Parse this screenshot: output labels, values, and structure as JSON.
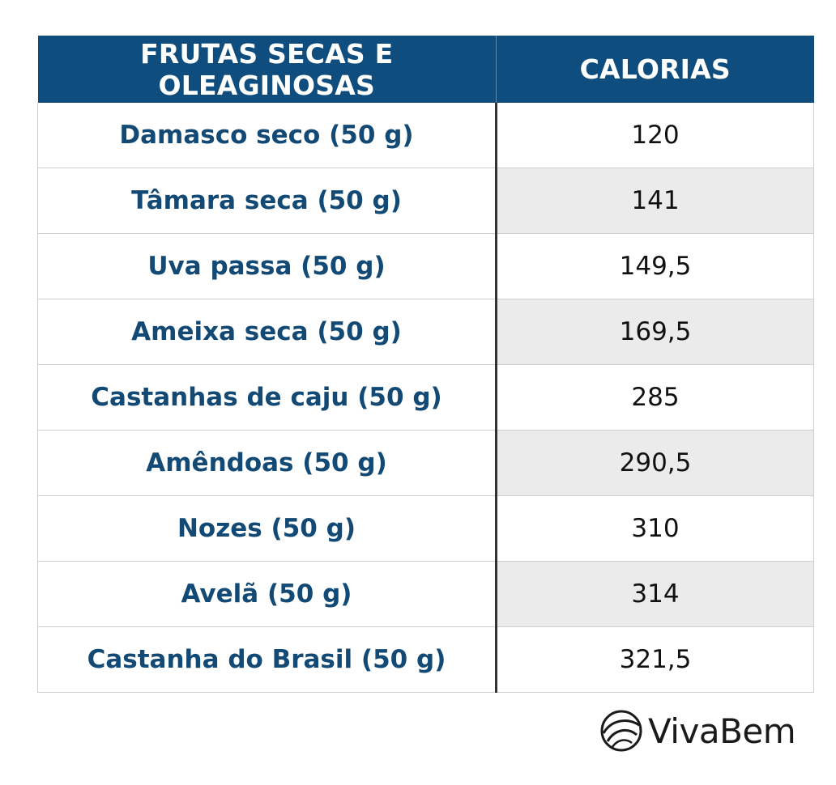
{
  "table": {
    "headers": [
      "FRUTAS SECAS E OLEAGINOSAS",
      "CALORIAS"
    ],
    "rows": [
      {
        "item": "Damasco seco (50 g)",
        "calories": "120"
      },
      {
        "item": "Tâmara seca (50 g)",
        "calories": "141"
      },
      {
        "item": "Uva passa (50 g)",
        "calories": "149,5"
      },
      {
        "item": "Ameixa seca (50 g)",
        "calories": "169,5"
      },
      {
        "item": "Castanhas de caju (50 g)",
        "calories": "285"
      },
      {
        "item": "Amêndoas (50 g)",
        "calories": "290,5"
      },
      {
        "item": "Nozes (50 g)",
        "calories": "310"
      },
      {
        "item": "Avelã (50 g)",
        "calories": "314"
      },
      {
        "item": "Castanha do Brasil (50 g)",
        "calories": "321,5"
      }
    ]
  },
  "logo": {
    "text": "VivaBem",
    "icon": "vivabem-logo-icon"
  },
  "colors": {
    "header_bg": "#0e4d7e",
    "item_text": "#124a75",
    "stripe": "#ebebeb"
  }
}
